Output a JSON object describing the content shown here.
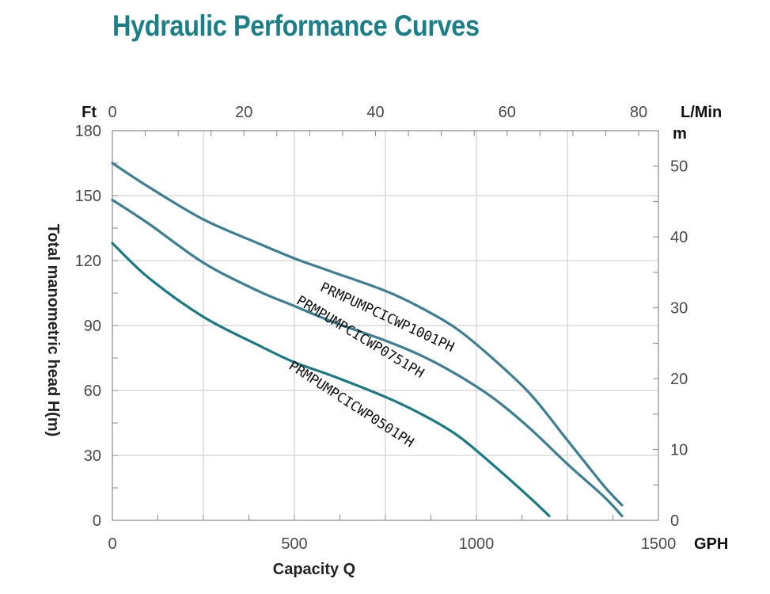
{
  "title": "Hydraulic Performance Curves",
  "colors": {
    "title": "#1a7f86",
    "series_dark": "#1a7a82",
    "series_light": "#3d7f90",
    "grid": "#c8c8c8"
  },
  "chart_data": {
    "type": "line",
    "title": "Hydraulic Performance Curves",
    "xlabel": "Capacity Q",
    "ylabel": "Total manometric head H(m)",
    "x_unit": "GPH",
    "x2_unit": "L/Min",
    "y_unit_left": "Ft",
    "y_unit_right": "m",
    "xlim": [
      0,
      1500
    ],
    "ylim": [
      0,
      180
    ],
    "x2lim": [
      0,
      83
    ],
    "y2lim": [
      0,
      55
    ],
    "x_ticks": [
      "0",
      "500",
      "1000",
      "1500"
    ],
    "x2_ticks": [
      "0",
      "20",
      "40",
      "60",
      "80"
    ],
    "y_ticks": [
      "0",
      "30",
      "60",
      "90",
      "120",
      "150",
      "180"
    ],
    "y2_ticks": [
      "0",
      "10",
      "20",
      "30",
      "40",
      "50"
    ],
    "grid": true,
    "series": [
      {
        "name": "PRMPUMPCICWP1001PH",
        "x": [
          0,
          100,
          250,
          400,
          500,
          600,
          750,
          850,
          950,
          1050,
          1150,
          1250,
          1350,
          1400
        ],
        "y": [
          165,
          154,
          139,
          128,
          121,
          115,
          106,
          98,
          88,
          74,
          58,
          37,
          16,
          7
        ]
      },
      {
        "name": "PRMPUMPCICWP0751PH",
        "x": [
          0,
          100,
          250,
          400,
          500,
          600,
          750,
          850,
          950,
          1050,
          1150,
          1250,
          1350,
          1400
        ],
        "y": [
          148,
          137,
          119,
          106,
          99,
          92,
          83,
          76,
          67,
          56,
          42,
          26,
          11,
          2
        ]
      },
      {
        "name": "PRMPUMPCICWP0501PH",
        "x": [
          0,
          100,
          250,
          400,
          500,
          600,
          750,
          850,
          950,
          1050,
          1150,
          1200
        ],
        "y": [
          128,
          112,
          94,
          81,
          73,
          67,
          57,
          49,
          39,
          25,
          10,
          2
        ]
      }
    ]
  }
}
